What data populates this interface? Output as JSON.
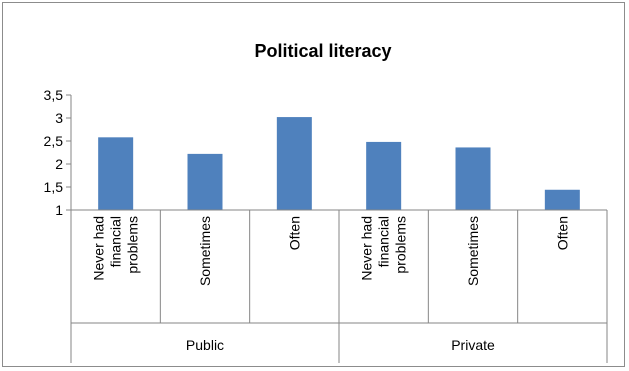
{
  "chart_data": {
    "type": "bar",
    "title": "Political literacy",
    "groups": [
      {
        "label": "Public",
        "categories": [
          "Never had financial problems",
          "Sometimes",
          "Often"
        ]
      },
      {
        "label": "Private",
        "categories": [
          "Never had financial problems",
          "Sometimes",
          "Often"
        ]
      }
    ],
    "category_lines": [
      [
        "Never had",
        "financial",
        "problems"
      ],
      [
        "Sometimes"
      ],
      [
        "Often"
      ],
      [
        "Never had",
        "financial",
        "problems"
      ],
      [
        "Sometimes"
      ],
      [
        "Often"
      ]
    ],
    "series": [
      {
        "values": [
          2.58,
          2.22,
          3.02,
          2.48,
          2.36,
          1.44
        ]
      }
    ],
    "ylim": [
      1,
      3.5
    ],
    "yticks": [
      1,
      1.5,
      2,
      2.5,
      3,
      3.5
    ],
    "ytick_labels": [
      "1",
      "1,5",
      "2",
      "2,5",
      "3",
      "3,5"
    ],
    "grid": false,
    "bar_color": "#4f81bd"
  }
}
